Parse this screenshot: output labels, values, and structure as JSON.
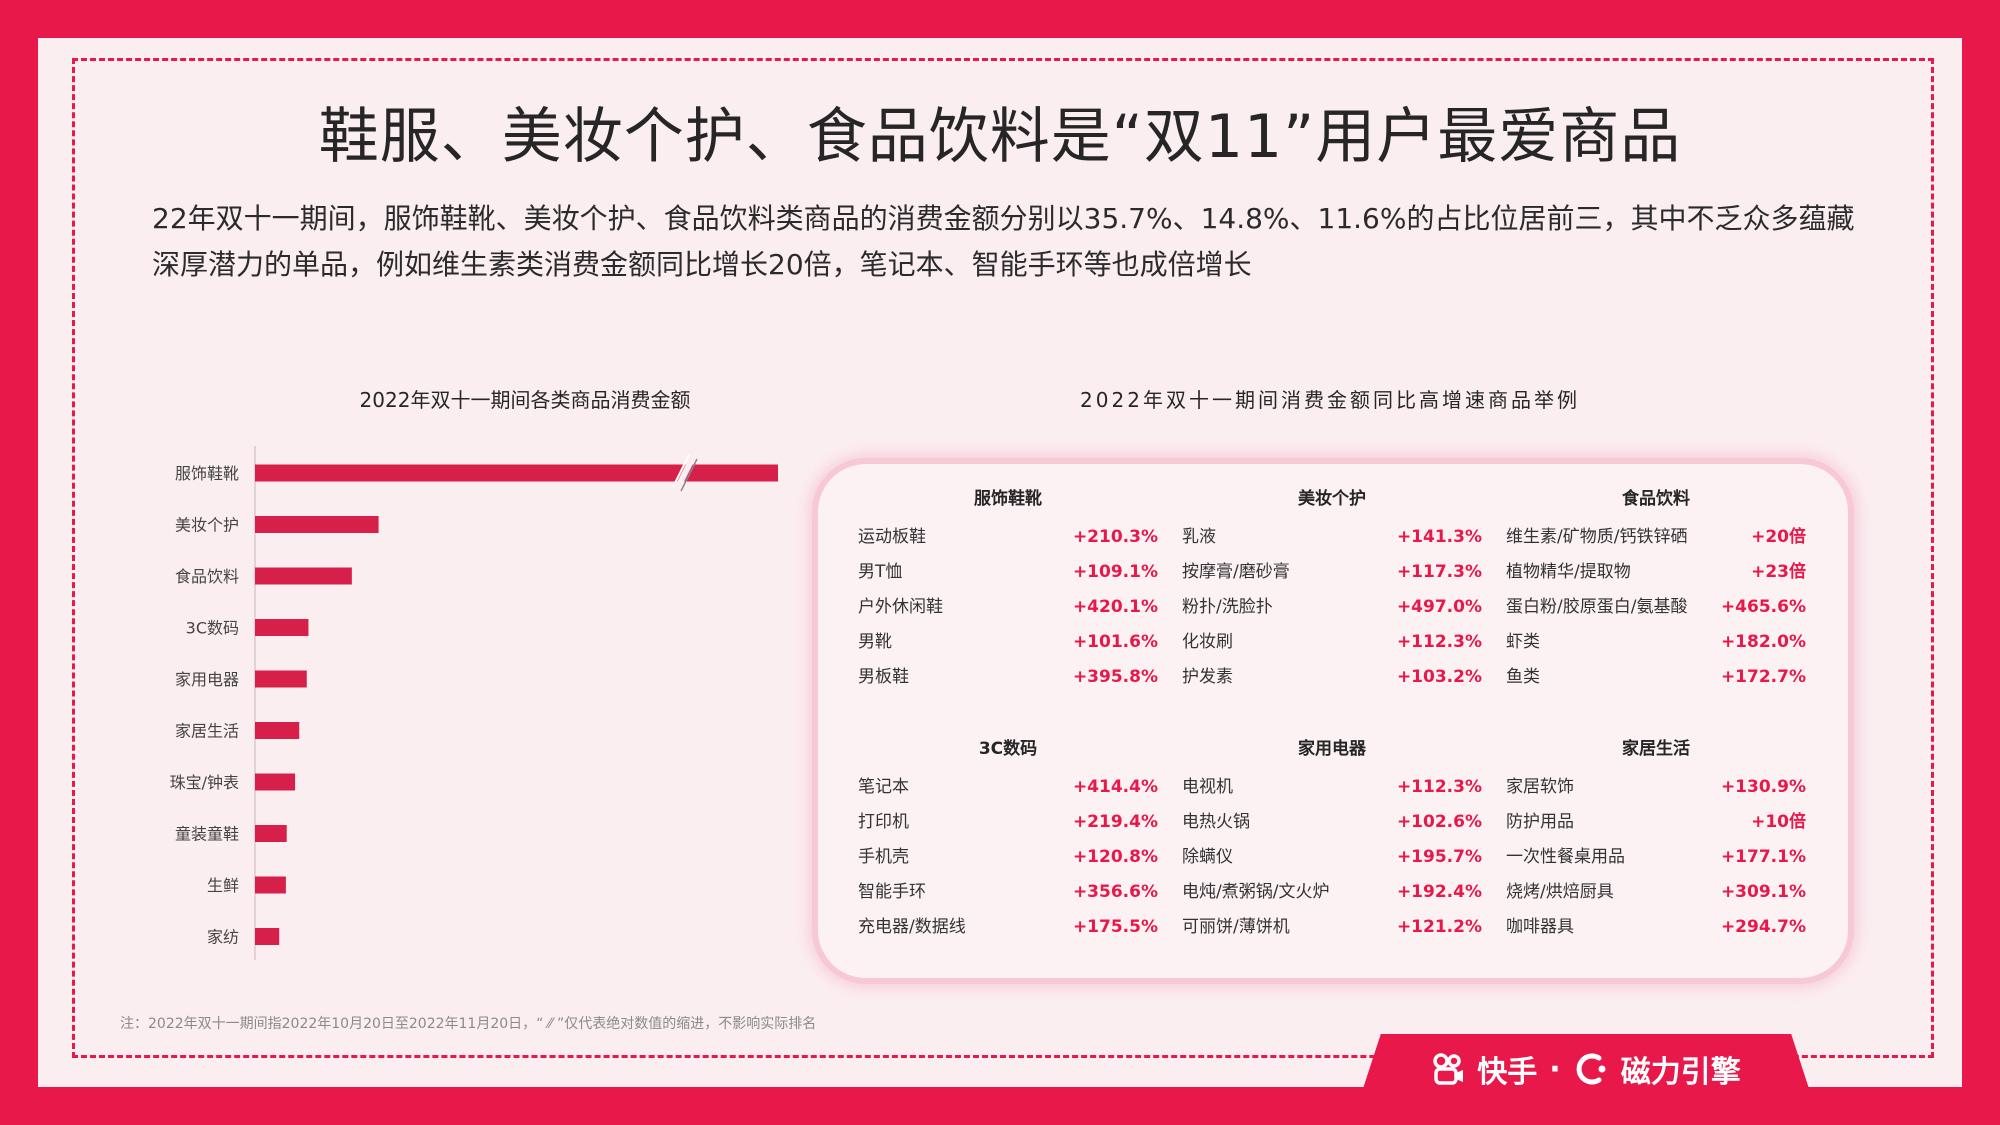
{
  "title": "鞋服、美妆个护、食品饮料是“双11”用户最爱商品",
  "intro": "22年双十一期间，服饰鞋靴、美妆个护、食品饮料类商品的消费金额分别以35.7%、14.8%、11.6%的占比位居前三，其中不乏众多蕴藏深厚潜力的单品，例如维生素类消费金额同比增长20倍，笔记本、智能手环等也成倍增长",
  "colors": {
    "accent": "#e8184a",
    "bar": "#d6204a",
    "background": "#fbeef1"
  },
  "chart_data": [
    {
      "type": "bar",
      "orientation": "horizontal",
      "title": "2022年双十一期间各类商品消费金额",
      "categories": [
        "服饰鞋靴",
        "美妆个护",
        "食品饮料",
        "3C数码",
        "家用电器",
        "家居生活",
        "珠宝/钟表",
        "童装童鞋",
        "生鲜",
        "家纺"
      ],
      "values": [
        35.7,
        14.8,
        11.6,
        6.4,
        6.2,
        5.3,
        4.8,
        3.8,
        3.7,
        2.9
      ],
      "value_unit": "%",
      "axis_break_on": "服饰鞋靴",
      "grid": false
    },
    {
      "type": "table",
      "title": "2022年双十一期间消费金额同比高增速商品举例",
      "groups": [
        {
          "name": "服饰鞋靴",
          "items": [
            {
              "label": "运动板鞋",
              "value": "+210.3%"
            },
            {
              "label": "男T恤",
              "value": "+109.1%"
            },
            {
              "label": "户外休闲鞋",
              "value": "+420.1%"
            },
            {
              "label": "男靴",
              "value": "+101.6%"
            },
            {
              "label": "男板鞋",
              "value": "+395.8%"
            }
          ]
        },
        {
          "name": "美妆个护",
          "items": [
            {
              "label": "乳液",
              "value": "+141.3%"
            },
            {
              "label": "按摩膏/磨砂膏",
              "value": "+117.3%"
            },
            {
              "label": "粉扑/洗脸扑",
              "value": "+497.0%"
            },
            {
              "label": "化妆刷",
              "value": "+112.3%"
            },
            {
              "label": "护发素",
              "value": "+103.2%"
            }
          ]
        },
        {
          "name": "食品饮料",
          "items": [
            {
              "label": "维生素/矿物质/钙铁锌硒",
              "value": "+20倍"
            },
            {
              "label": "植物精华/提取物",
              "value": "+23倍"
            },
            {
              "label": "蛋白粉/胶原蛋白/氨基酸",
              "value": "+465.6%"
            },
            {
              "label": "虾类",
              "value": "+182.0%"
            },
            {
              "label": "鱼类",
              "value": "+172.7%"
            }
          ]
        },
        {
          "name": "3C数码",
          "items": [
            {
              "label": "笔记本",
              "value": "+414.4%"
            },
            {
              "label": "打印机",
              "value": "+219.4%"
            },
            {
              "label": "手机壳",
              "value": "+120.8%"
            },
            {
              "label": "智能手环",
              "value": "+356.6%"
            },
            {
              "label": "充电器/数据线",
              "value": "+175.5%"
            }
          ]
        },
        {
          "name": "家用电器",
          "items": [
            {
              "label": "电视机",
              "value": "+112.3%"
            },
            {
              "label": "电热火锅",
              "value": "+102.6%"
            },
            {
              "label": "除螨仪",
              "value": "+195.7%"
            },
            {
              "label": "电炖/煮粥锅/文火炉",
              "value": "+192.4%"
            },
            {
              "label": "可丽饼/薄饼机",
              "value": "+121.2%"
            }
          ]
        },
        {
          "name": "家居生活",
          "items": [
            {
              "label": "家居软饰",
              "value": "+130.9%"
            },
            {
              "label": "防护用品",
              "value": "+10倍"
            },
            {
              "label": "一次性餐桌用品",
              "value": "+177.1%"
            },
            {
              "label": "烧烤/烘焙厨具",
              "value": "+309.1%"
            },
            {
              "label": "咖啡器具",
              "value": "+294.7%"
            }
          ]
        }
      ]
    }
  ],
  "note": "注：2022年双十一期间指2022年10月20日至2022年11月20日，“ ⁄⁄ ”仅代表绝对数值的缩进，不影响实际排名",
  "brand": {
    "kuaishou": "快手",
    "separator": "·",
    "engine": "磁力引擎",
    "kuaishou_icon": "kuaishou-logo-icon",
    "engine_icon": "cili-engine-logo-icon"
  }
}
